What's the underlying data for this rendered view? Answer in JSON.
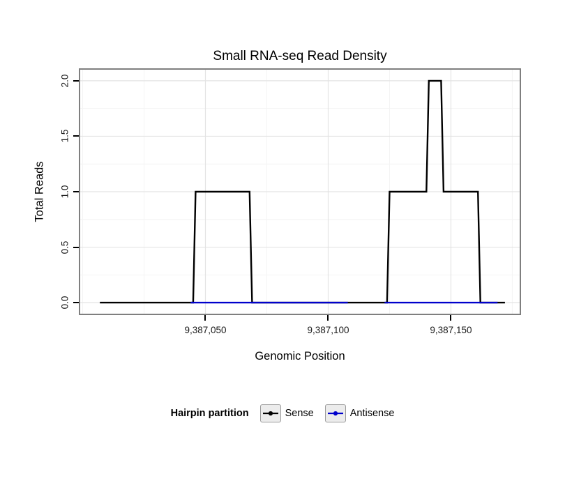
{
  "chart_data": {
    "type": "line",
    "step": true,
    "title": "Small RNA-seq Read Density",
    "xlabel": "Genomic Position",
    "ylabel": "Total Reads",
    "xlim": [
      9386999,
      9387178
    ],
    "ylim": [
      -0.1,
      2.1
    ],
    "grid": {
      "major_color": "#e3e3e3",
      "minor_color": "#f4f4f4",
      "on": true
    },
    "panel_border_color": "#7f7f7f",
    "x_ticks": [
      {
        "value": 9387050,
        "label": "9,387,050"
      },
      {
        "value": 9387100,
        "label": "9,387,100"
      },
      {
        "value": 9387150,
        "label": "9,387,150"
      }
    ],
    "x_minor": [
      9387000,
      9387025,
      9387075,
      9387125,
      9387175
    ],
    "y_ticks": [
      {
        "value": 0.0,
        "label": "0.0"
      },
      {
        "value": 0.5,
        "label": "0.5"
      },
      {
        "value": 1.0,
        "label": "1.0"
      },
      {
        "value": 1.5,
        "label": "1.5"
      },
      {
        "value": 2.0,
        "label": "2.0"
      }
    ],
    "y_minor": [
      0.25,
      0.75,
      1.25,
      1.75
    ],
    "legend": {
      "title": "Hairpin partition",
      "position": "bottom"
    },
    "series": [
      {
        "name": "Sense",
        "color": "#000000",
        "width": 2.4,
        "segments": [
          [
            [
              9387007,
              0
            ],
            [
              9387045,
              0
            ],
            [
              9387046,
              1
            ],
            [
              9387068,
              1
            ],
            [
              9387069,
              0
            ],
            [
              9387124,
              0
            ],
            [
              9387125,
              1
            ],
            [
              9387140,
              1
            ],
            [
              9387141,
              2
            ],
            [
              9387146,
              2
            ],
            [
              9387147,
              1
            ],
            [
              9387161,
              1
            ],
            [
              9387162,
              0
            ],
            [
              9387172,
              0
            ]
          ]
        ]
      },
      {
        "name": "Antisense",
        "color": "#0000CC",
        "width": 2.4,
        "segments": [
          [
            [
              9387044,
              0
            ],
            [
              9387108,
              0
            ]
          ],
          [
            [
              9387123,
              0
            ],
            [
              9387169,
              0
            ]
          ]
        ]
      }
    ]
  }
}
